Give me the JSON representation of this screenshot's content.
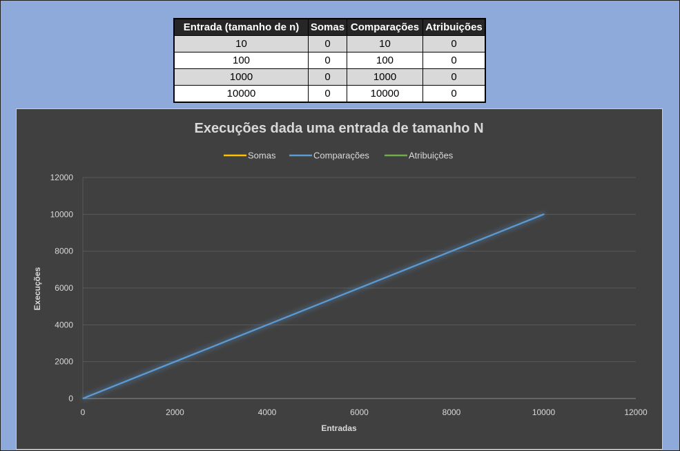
{
  "table": {
    "headers": [
      "Entrada (tamanho de n)",
      "Somas",
      "Comparações",
      "Atribuições"
    ],
    "rows": [
      [
        "10",
        "0",
        "10",
        "0"
      ],
      [
        "100",
        "0",
        "100",
        "0"
      ],
      [
        "1000",
        "0",
        "1000",
        "0"
      ],
      [
        "10000",
        "0",
        "10000",
        "0"
      ]
    ]
  },
  "chart_data": {
    "type": "line",
    "title": "Execuções dada uma entrada de tamanho N",
    "xlabel": "Entradas",
    "ylabel": "Execuções",
    "xlim": [
      0,
      12000
    ],
    "ylim": [
      0,
      12000
    ],
    "xticks": [
      0,
      2000,
      4000,
      6000,
      8000,
      10000,
      12000
    ],
    "yticks": [
      0,
      2000,
      4000,
      6000,
      8000,
      10000,
      12000
    ],
    "grid": true,
    "legend_position": "top",
    "x": [
      10,
      100,
      1000,
      10000
    ],
    "series": [
      {
        "name": "Somas",
        "values": [
          0,
          0,
          0,
          0
        ],
        "color": "#ffc000"
      },
      {
        "name": "Comparações",
        "values": [
          10,
          100,
          1000,
          10000
        ],
        "color": "#5b9bd5"
      },
      {
        "name": "Atribuições",
        "values": [
          0,
          0,
          0,
          0
        ],
        "color": "#70ad47"
      }
    ]
  }
}
